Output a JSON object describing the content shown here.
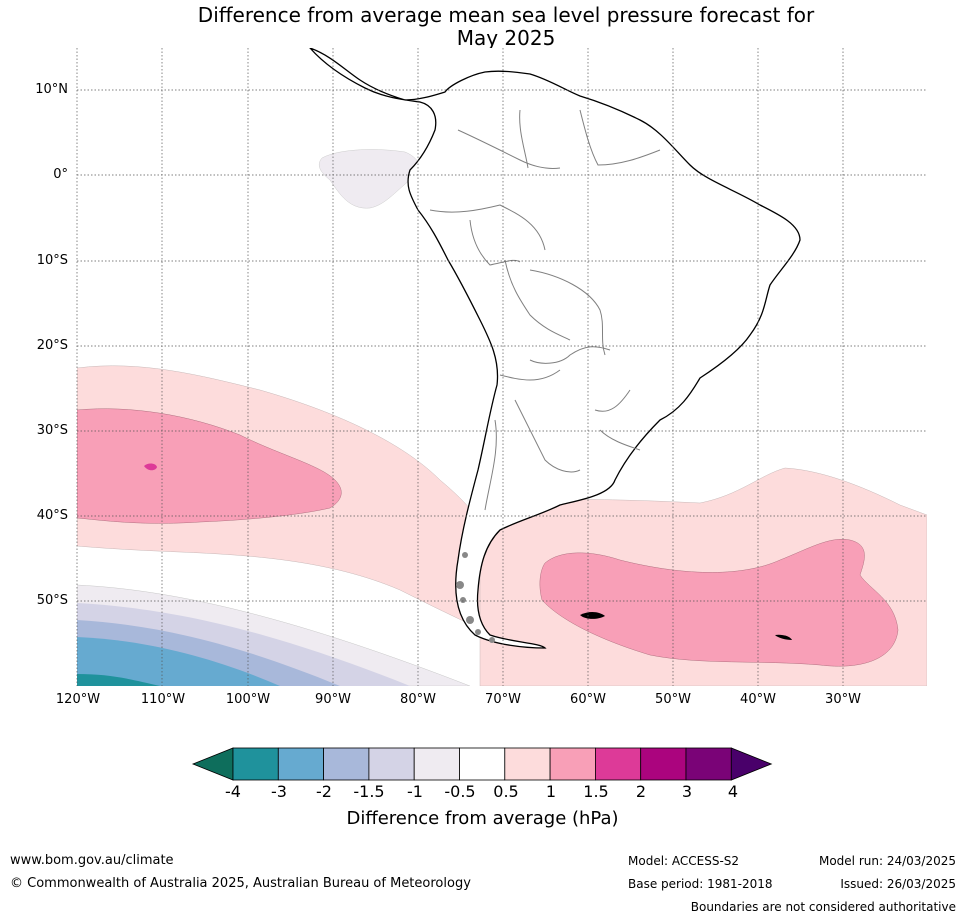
{
  "title": {
    "line1": "Difference from average mean sea level pressure forecast for",
    "line2": "May 2025"
  },
  "map": {
    "region": "South America",
    "lat_labels": [
      "10°N",
      "0°",
      "10°S",
      "20°S",
      "30°S",
      "40°S",
      "50°S"
    ],
    "lon_labels": [
      "120°W",
      "110°W",
      "100°W",
      "90°W",
      "80°W",
      "70°W",
      "60°W",
      "50°W",
      "40°W",
      "30°W"
    ],
    "gridlines": "dotted"
  },
  "colorbar": {
    "title": "Difference from average (hPa)",
    "ticks": [
      "-4",
      "-3",
      "-2",
      "-1.5",
      "-1",
      "-0.5",
      "0.5",
      "1",
      "1.5",
      "2",
      "3",
      "4"
    ],
    "colors": [
      "#0e6e5c",
      "#1f929c",
      "#66aad0",
      "#a8b8da",
      "#d4d3e6",
      "#efebf1",
      "#ffffff",
      "#fddcdc",
      "#f89fb7",
      "#dd3a98",
      "#ab047e",
      "#7a0377",
      "#49006a"
    ]
  },
  "footer": {
    "url": "www.bom.gov.au/climate",
    "copyright": "© Commonwealth of Australia 2025, Australian Bureau of Meteorology",
    "model": "Model: ACCESS-S2",
    "base_period": "Base period: 1981-2018",
    "model_run": "Model run: 24/03/2025",
    "issued": "Issued: 26/03/2025",
    "disclaimer": "Boundaries are not considered authoritative"
  }
}
